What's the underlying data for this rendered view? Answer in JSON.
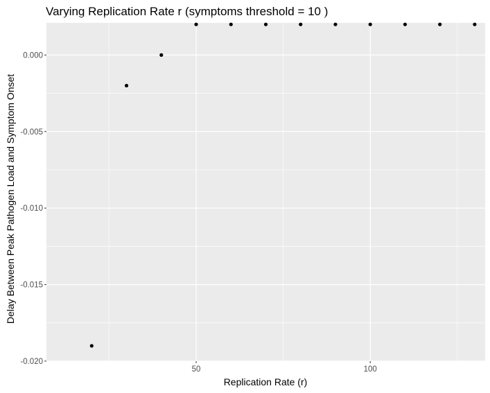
{
  "chart_data": {
    "type": "scatter",
    "title": "Varying Replication Rate r (symptoms threshold =  10 )",
    "xlabel": "Replication Rate (r)",
    "ylabel": "Delay Between Peak Pathogen Load and Symptom Onset",
    "xlim": [
      7,
      133
    ],
    "ylim": [
      -0.02,
      0.0021
    ],
    "x_ticks": [
      50,
      100
    ],
    "x_tick_labels": [
      "50",
      "100"
    ],
    "x_minor_ticks": [
      25,
      75,
      125
    ],
    "y_ticks": [
      -0.02,
      -0.015,
      -0.01,
      -0.005,
      0.0
    ],
    "y_tick_labels": [
      "-0.020",
      "-0.015",
      "-0.010",
      "-0.005",
      "0.000"
    ],
    "y_minor_ticks": [
      -0.0175,
      -0.0125,
      -0.0075,
      -0.0025,
      0.0025
    ],
    "grid": true,
    "background": "#ebebeb",
    "grid_color": "#ffffff",
    "point_color": "#000000",
    "series": [
      {
        "x": [
          20,
          30,
          40,
          50,
          60,
          70,
          80,
          90,
          100,
          110,
          120,
          130
        ],
        "y": [
          -0.019,
          -0.002,
          0.0,
          0.002,
          0.002,
          0.002,
          0.002,
          0.002,
          0.002,
          0.002,
          0.002,
          0.002
        ]
      }
    ]
  }
}
